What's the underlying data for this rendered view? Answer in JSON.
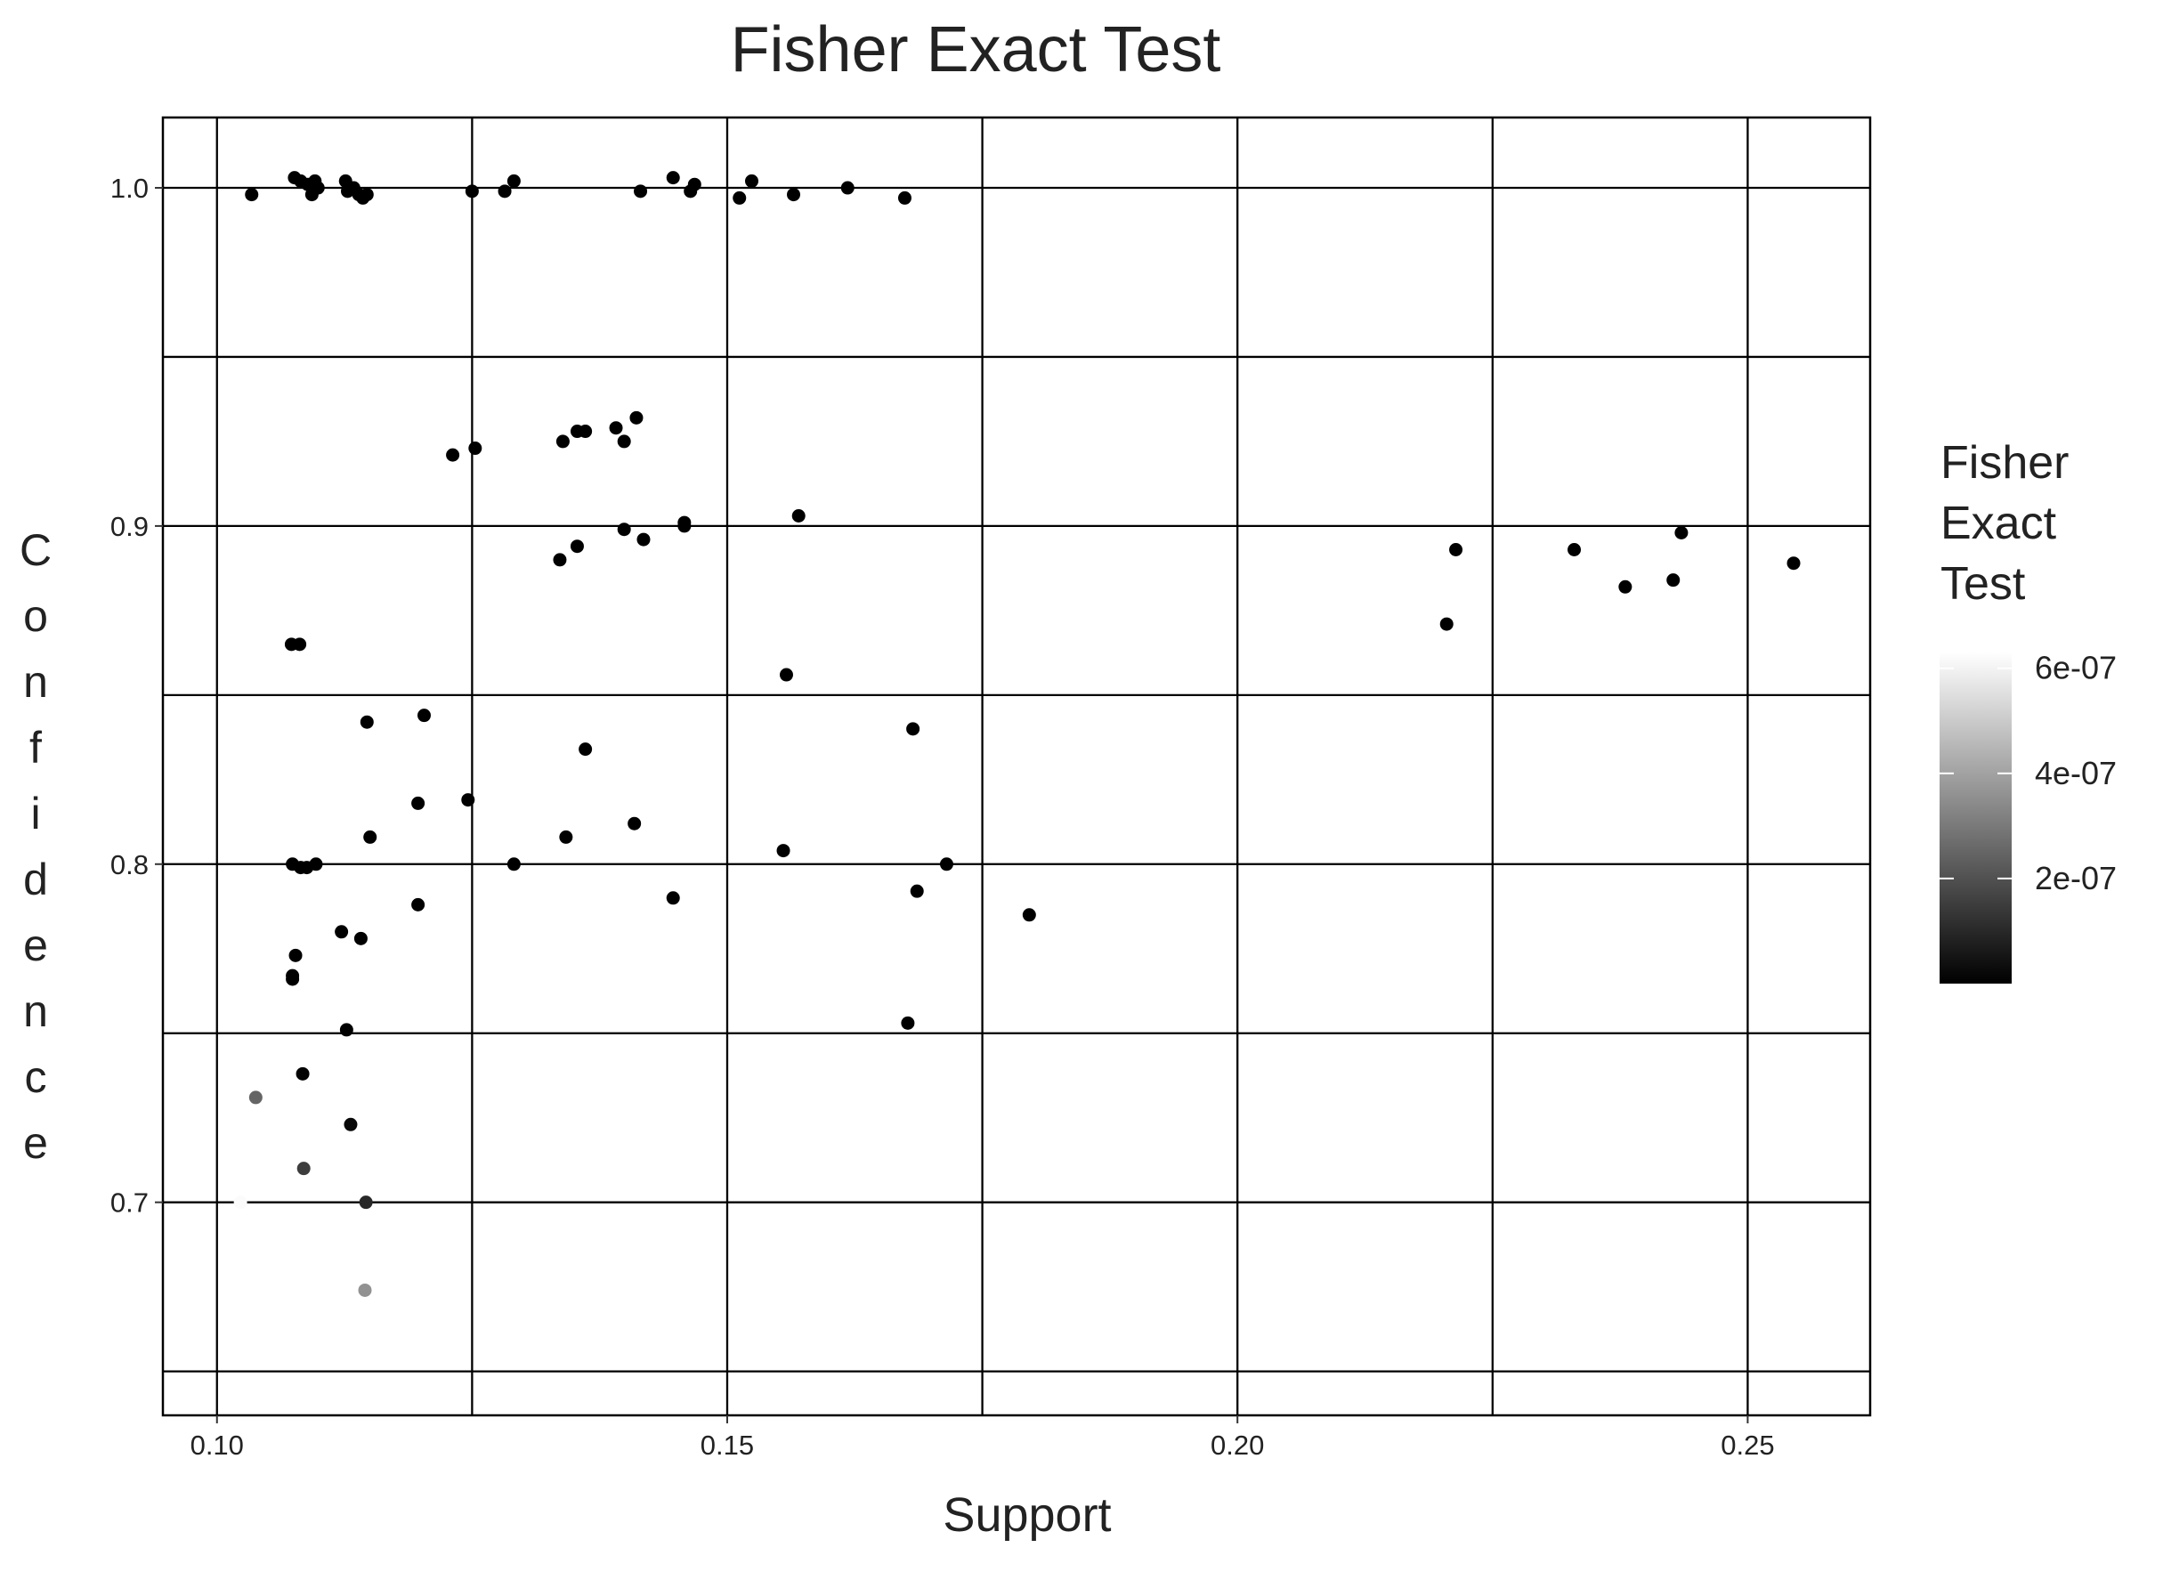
{
  "chart_data": {
    "type": "scatter",
    "title": "Fisher Exact Test",
    "x_label": "Support",
    "y_label": "Confidence",
    "legend_title": "Fisher Exact Test",
    "xlim": [
      0.0947,
      0.262
    ],
    "ylim": [
      0.637,
      1.0208
    ],
    "xticks": [
      {
        "value": 0.1,
        "label": "0.10"
      },
      {
        "value": 0.15,
        "label": "0.15"
      },
      {
        "value": 0.2,
        "label": "0.20"
      },
      {
        "value": 0.25,
        "label": "0.25"
      }
    ],
    "yticks": [
      0.7,
      0.8,
      0.9,
      {
        "value": 1,
        "label": "1.0"
      }
    ],
    "x_minor_grid": [
      0.125,
      0.175,
      0.225
    ],
    "y_minor_grid": [
      0.65,
      0.75,
      0.85,
      0.95
    ],
    "grid": true,
    "color_low": "#000000",
    "color_high": "#ffffff",
    "color_lim": [
      0,
      6.3e-07
    ],
    "color_ticks": [
      {
        "value": 2e-07,
        "label": "2e-07"
      },
      {
        "value": 4e-07,
        "label": "4e-07"
      },
      {
        "value": 6e-07,
        "label": "6e-07"
      }
    ],
    "x": [
      0.1034,
      0.1076,
      0.1082,
      0.1089,
      0.1093,
      0.1096,
      0.1099,
      0.1126,
      0.1128,
      0.1134,
      0.1139,
      0.1143,
      0.1147,
      0.125,
      0.1282,
      0.1291,
      0.1415,
      0.1447,
      0.1464,
      0.1468,
      0.1512,
      0.1524,
      0.1565,
      0.1618,
      0.1674,
      0.1231,
      0.1253,
      0.1339,
      0.1353,
      0.1361,
      0.1391,
      0.1399,
      0.1411,
      0.1336,
      0.1353,
      0.1399,
      0.1418,
      0.1458,
      0.1458,
      0.157,
      0.1558,
      0.2205,
      0.2214,
      0.233,
      0.238,
      0.2427,
      0.2435,
      0.2545,
      0.1073,
      0.1081,
      0.1147,
      0.1203,
      0.1197,
      0.1246,
      0.1361,
      0.115,
      0.1342,
      0.1409,
      0.1555,
      0.1682,
      0.1291,
      0.1074,
      0.1082,
      0.1088,
      0.1097,
      0.1197,
      0.1447,
      0.1686,
      0.1715,
      0.1796,
      0.1677,
      0.1077,
      0.1074,
      0.1074,
      0.1122,
      0.1141,
      0.1127,
      0.1084,
      0.1131,
      0.1038,
      0.1085,
      0.1023,
      0.1146,
      0.1145
    ],
    "y": [
      0.998,
      1.003,
      1.002,
      1.001,
      0.998,
      1.002,
      1.0,
      1.002,
      0.999,
      1.0,
      0.998,
      0.997,
      0.998,
      0.999,
      0.999,
      1.002,
      0.999,
      1.003,
      0.999,
      1.001,
      0.997,
      1.002,
      0.998,
      1.0,
      0.997,
      0.921,
      0.923,
      0.925,
      0.928,
      0.928,
      0.929,
      0.925,
      0.932,
      0.89,
      0.894,
      0.899,
      0.896,
      0.901,
      0.9,
      0.903,
      0.856,
      0.871,
      0.893,
      0.893,
      0.882,
      0.884,
      0.898,
      0.889,
      0.865,
      0.865,
      0.842,
      0.844,
      0.818,
      0.819,
      0.834,
      0.808,
      0.808,
      0.812,
      0.804,
      0.84,
      0.8,
      0.8,
      0.799,
      0.799,
      0.8,
      0.788,
      0.79,
      0.792,
      0.8,
      0.785,
      0.753,
      0.773,
      0.767,
      0.766,
      0.78,
      0.778,
      0.751,
      0.738,
      0.723,
      0.731,
      0.71,
      0.7,
      0.7,
      0.674
    ],
    "color_values": [
      0,
      0,
      0,
      0,
      0,
      0,
      0,
      0,
      0,
      0,
      0,
      0,
      0,
      0,
      0,
      0,
      0,
      0,
      0,
      0,
      0,
      0,
      0,
      0,
      0,
      0,
      0,
      0,
      0,
      0,
      0,
      0,
      0,
      0,
      0,
      0,
      0,
      0,
      0,
      0,
      0,
      0,
      0,
      0,
      0,
      0,
      0,
      0,
      0,
      0,
      0,
      0,
      0,
      0,
      0,
      0,
      0,
      0,
      0,
      0,
      0,
      0,
      0,
      0,
      0,
      0,
      0,
      0,
      0,
      0,
      0,
      0,
      0,
      0,
      0,
      0,
      0,
      1e-08,
      2e-08,
      2.5e-07,
      1.5e-07,
      6.2e-07,
      1e-07,
      3.6e-07
    ]
  }
}
